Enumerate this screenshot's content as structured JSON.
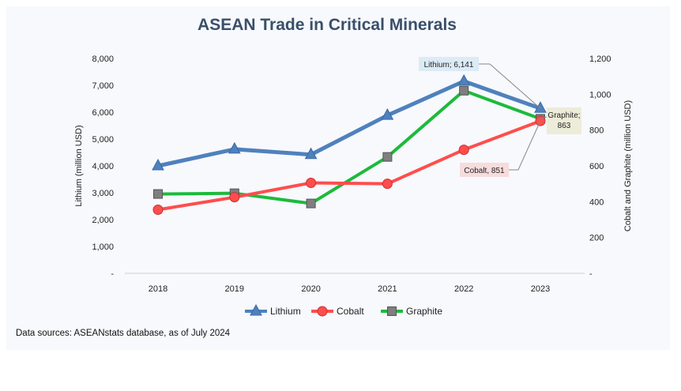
{
  "chart_data": {
    "type": "line",
    "title": "ASEAN Trade in Critical Minerals",
    "categories": [
      "2018",
      "2019",
      "2020",
      "2021",
      "2022",
      "2023"
    ],
    "ylabel_left": "Lithium (million USD)",
    "ylabel_right": "Cobalt and Graphite (million USD)",
    "ylim_left": [
      0,
      8000
    ],
    "ylim_right": [
      0,
      1200
    ],
    "yticks_left": [
      "-",
      "1,000",
      "2,000",
      "3,000",
      "4,000",
      "5,000",
      "6,000",
      "7,000",
      "8,000"
    ],
    "yticks_right": [
      "-",
      "200",
      "400",
      "600",
      "800",
      "1,000",
      "1,200"
    ],
    "grid": false,
    "legend_position": "bottom",
    "series": [
      {
        "name": "Lithium",
        "axis": "left",
        "color": "#4f81bd",
        "marker": "triangle",
        "values": [
          4000,
          4620,
          4420,
          5880,
          7150,
          6141
        ]
      },
      {
        "name": "Cobalt",
        "axis": "right",
        "color": "#ff4d4d",
        "marker": "circle",
        "values": [
          355,
          425,
          505,
          500,
          690,
          851
        ]
      },
      {
        "name": "Graphite",
        "axis": "right",
        "color": "#1cba3c",
        "marker": "square",
        "values": [
          443,
          447,
          390,
          650,
          1020,
          863
        ]
      }
    ],
    "annotations": [
      {
        "series": "Lithium",
        "text": "Lithium; 6,141",
        "bg": "#dcebf5"
      },
      {
        "series": "Graphite",
        "text": "Graphite;",
        "text2": "863",
        "bg": "#ececd9"
      },
      {
        "series": "Cobalt",
        "text": "Cobalt,  851",
        "bg": "#f7dcdc"
      }
    ],
    "source": "Data sources: ASEANstats database, as of July 2024"
  }
}
